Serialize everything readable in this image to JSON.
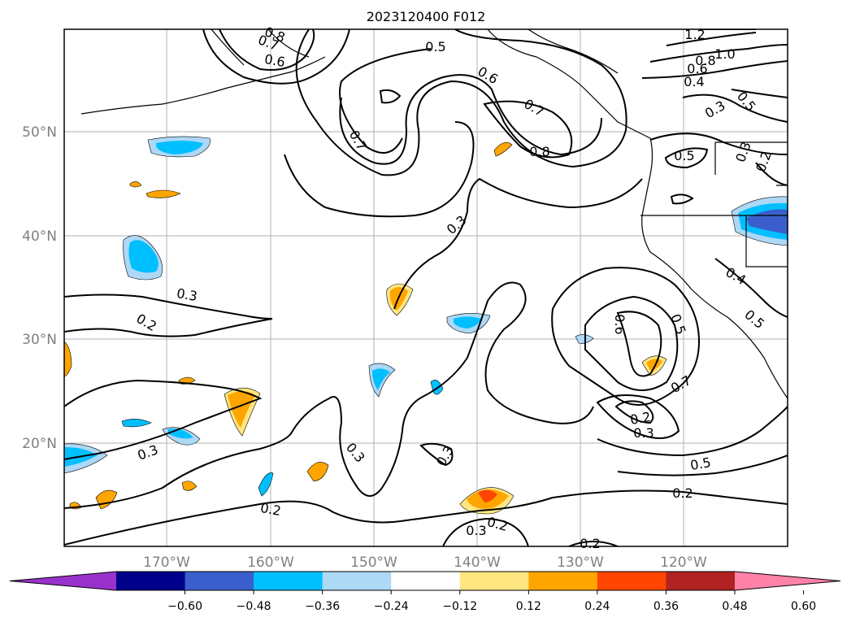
{
  "title": "2023120400 F012",
  "lat_labels": [
    "50°N",
    "40°N",
    "30°N",
    "20°N"
  ],
  "lon_labels": [
    "170°W",
    "160°W",
    "150°W",
    "140°W",
    "130°W",
    "120°W"
  ],
  "contour_labels": [
    "0.5",
    "0.6",
    "0.7",
    "0.7",
    "0.8",
    "0.6",
    "0.7",
    "0.8",
    "0.3",
    "0.3",
    "0.2",
    "0.3",
    "0.2",
    "0.3",
    "0.3",
    "0.2",
    "0.3",
    "0.2",
    "0.6",
    "0.5",
    "0.7",
    "0.2",
    "0.3",
    "0.5",
    "0.2",
    "1.2",
    "1.0",
    "0.8",
    "0.6",
    "0.4",
    "0.5",
    "0.3",
    "0.5",
    "0.3",
    "0.2",
    "0.4",
    "0.5"
  ],
  "colorbar": {
    "ticks": [
      "−0.60",
      "−0.48",
      "−0.36",
      "−0.24",
      "−0.12",
      "0.12",
      "0.24",
      "0.36",
      "0.48",
      "0.60"
    ],
    "colors": [
      "#9932cc",
      "#00008b",
      "#3a5fcd",
      "#00bfff",
      "#add8f6",
      "#ffffff",
      "#ffe680",
      "#ffa500",
      "#ff4500",
      "#b22222",
      "#ff82a9"
    ],
    "extend": "both"
  },
  "colors": {
    "grid": "#b0b0b0",
    "tick_label": "#808080",
    "contour": "#000000"
  }
}
